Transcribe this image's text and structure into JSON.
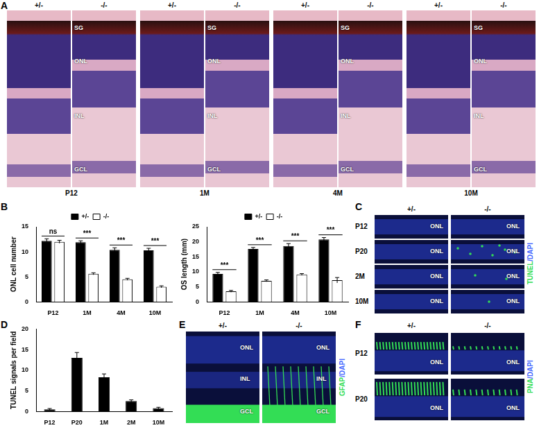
{
  "figure": {
    "panel_A": {
      "label": "A",
      "genotypes": [
        "+/-",
        "-/-"
      ],
      "timepoints": [
        "P12",
        "1M",
        "4M",
        "10M"
      ],
      "layers": [
        "SG",
        "ONL",
        "INL",
        "GCL"
      ]
    },
    "panel_B": {
      "label": "B"
    },
    "panel_C": {
      "label": "C",
      "genotypes": [
        "+/-",
        "-/-"
      ],
      "rows": [
        "P12",
        "P20",
        "2M",
        "10M"
      ],
      "layer": "ONL",
      "stain": [
        {
          "text": "TUNEL",
          "color": "#33dd55"
        },
        {
          "text": "/DAPI",
          "color": "#4466ff"
        }
      ]
    },
    "panel_D": {
      "label": "D"
    },
    "panel_E": {
      "label": "E",
      "genotypes": [
        "+/-",
        "-/-"
      ],
      "layers": [
        "ONL",
        "INL",
        "GCL"
      ],
      "stain": [
        {
          "text": "GFAP",
          "color": "#33dd55"
        },
        {
          "text": "/DAPI",
          "color": "#4466ff"
        }
      ]
    },
    "panel_F": {
      "label": "F",
      "genotypes": [
        "+/-",
        "-/-"
      ],
      "rows": [
        "P12",
        "P20"
      ],
      "layer": "ONL",
      "stain": [
        {
          "text": "PNA",
          "color": "#33dd55"
        },
        {
          "text": "/DAPI",
          "color": "#4466ff"
        }
      ]
    }
  },
  "chart_data": [
    {
      "type": "bar",
      "y_label": "ONL cell number",
      "categories": [
        "P12",
        "1M",
        "4M",
        "10M"
      ],
      "series": [
        {
          "name": "+/-",
          "color": "#000000",
          "values": [
            12.2,
            11.9,
            10.4,
            10.3
          ],
          "errors": [
            0.4,
            0.3,
            0.4,
            0.4
          ]
        },
        {
          "name": "-/-",
          "color": "#ffffff",
          "values": [
            12.0,
            5.6,
            4.5,
            3.0
          ],
          "errors": [
            0.3,
            0.2,
            0.2,
            0.2
          ]
        }
      ],
      "ylim": [
        0,
        15
      ],
      "yticks": [
        0,
        5,
        10,
        15
      ],
      "grid": false,
      "legend": "top",
      "annotations": [
        {
          "category": "P12",
          "text": "ns"
        },
        {
          "category": "1M",
          "text": "***"
        },
        {
          "category": "4M",
          "text": "***"
        },
        {
          "category": "10M",
          "text": "***"
        }
      ]
    },
    {
      "type": "bar",
      "y_label": "OS length (mm)",
      "categories": [
        "P12",
        "1M",
        "4M",
        "10M"
      ],
      "series": [
        {
          "name": "+/-",
          "color": "#000000",
          "values": [
            9.3,
            17.6,
            18.6,
            20.8
          ],
          "errors": [
            0.5,
            0.5,
            0.8,
            0.6
          ]
        },
        {
          "name": "-/-",
          "color": "#ffffff",
          "values": [
            3.5,
            7.0,
            9.1,
            7.2
          ],
          "errors": [
            0.3,
            0.3,
            0.3,
            0.9
          ]
        }
      ],
      "ylim": [
        0,
        25
      ],
      "yticks": [
        0,
        5,
        10,
        15,
        20,
        25
      ],
      "grid": false,
      "legend": "top",
      "annotations": [
        {
          "category": "P12",
          "text": "***"
        },
        {
          "category": "1M",
          "text": "***"
        },
        {
          "category": "4M",
          "text": "***"
        },
        {
          "category": "10M",
          "text": "***"
        }
      ]
    },
    {
      "type": "bar",
      "y_label": "TUNEL signals per field",
      "categories": [
        "P12",
        "P20",
        "1M",
        "2M",
        "10M"
      ],
      "values": [
        0.5,
        13.0,
        8.3,
        2.5,
        0.8
      ],
      "errors": [
        0.2,
        1.3,
        0.8,
        0.3,
        0.2
      ],
      "color": "#000000",
      "ylim": [
        0,
        20
      ],
      "yticks": [
        0,
        5,
        10,
        15,
        20
      ],
      "grid": false
    }
  ]
}
